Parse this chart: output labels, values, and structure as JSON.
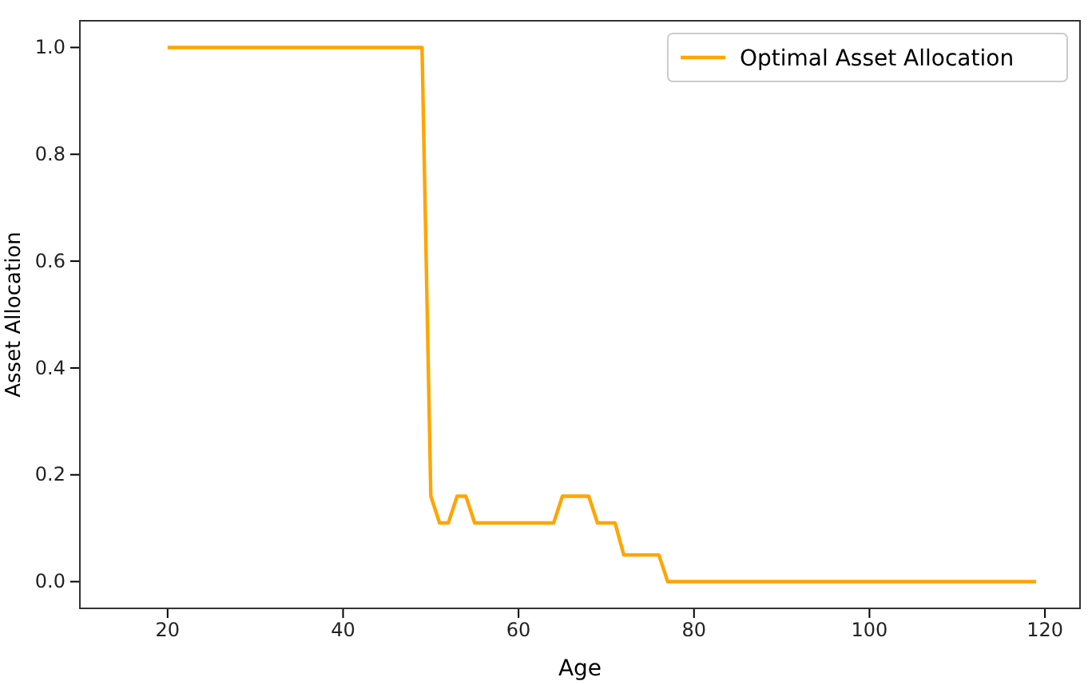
{
  "chart_data": {
    "type": "line",
    "xlabel": "Age",
    "ylabel": "Asset Allocation",
    "x": [
      20,
      49,
      50,
      51,
      52,
      53,
      54,
      55,
      64,
      65,
      68,
      69,
      71,
      72,
      76,
      77,
      119
    ],
    "series": [
      {
        "name": "Optimal Asset Allocation",
        "color": "#ffa500",
        "values": [
          1.0,
          1.0,
          0.16,
          0.11,
          0.11,
          0.16,
          0.16,
          0.11,
          0.11,
          0.16,
          0.16,
          0.11,
          0.11,
          0.05,
          0.05,
          0.0,
          0.0
        ]
      }
    ],
    "xlim": [
      10,
      124
    ],
    "xticks": [
      20,
      40,
      60,
      80,
      100,
      120
    ],
    "ylim": [
      -0.05,
      1.05
    ],
    "yticks": [
      {
        "value": 0,
        "label": "0.0"
      },
      {
        "value": 0.2,
        "label": "0.2"
      },
      {
        "value": 0.4,
        "label": "0.4"
      },
      {
        "value": 0.6,
        "label": "0.6"
      },
      {
        "value": 0.8,
        "label": "0.8"
      },
      {
        "value": 1,
        "label": "1.0"
      }
    ],
    "grid": false,
    "legend": "top right",
    "marker": "none",
    "line_style": "solid"
  }
}
